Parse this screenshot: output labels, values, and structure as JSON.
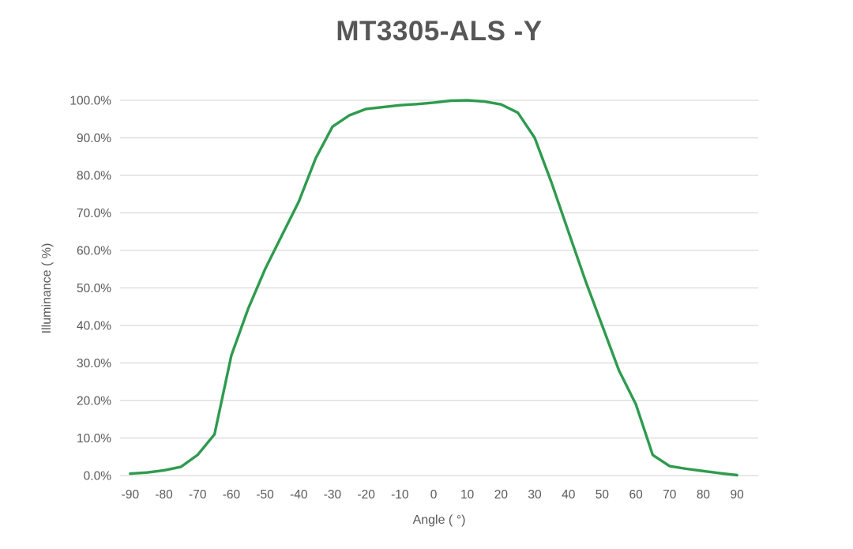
{
  "chart_data": {
    "type": "line",
    "title": "MT3305-ALS -Y",
    "xlabel": "Angle ( °)",
    "ylabel": "Illuminance ( %)",
    "xlim": [
      -94,
      97
    ],
    "ylim": [
      0,
      100
    ],
    "grid": "horizontal-gridlines-only",
    "legend": "none",
    "line_color": "#2e9b4e",
    "x_ticks": [
      -90,
      -80,
      -70,
      -60,
      -50,
      -40,
      -30,
      -20,
      -10,
      0,
      10,
      20,
      30,
      40,
      50,
      60,
      70,
      80,
      90
    ],
    "x_tick_labels": [
      "-90",
      "-80",
      "-70",
      "-60",
      "-50",
      "-40",
      "-30",
      "-20",
      "-10",
      "0",
      "10",
      "20",
      "30",
      "40",
      "50",
      "60",
      "70",
      "80",
      "90"
    ],
    "y_ticks": [
      0,
      10,
      20,
      30,
      40,
      50,
      60,
      70,
      80,
      90,
      100
    ],
    "y_tick_labels": [
      "0.0%",
      "10.0%",
      "20.0%",
      "30.0%",
      "40.0%",
      "50.0%",
      "60.0%",
      "70.0%",
      "80.0%",
      "90.0%",
      "100.0%"
    ],
    "series": [
      {
        "name": "Illuminance (%)",
        "x": [
          -90,
          -85,
          -80,
          -75,
          -70,
          -65,
          -60,
          -55,
          -50,
          -45,
          -40,
          -35,
          -30,
          -25,
          -20,
          -15,
          -10,
          -5,
          0,
          5,
          10,
          15,
          20,
          25,
          30,
          35,
          40,
          45,
          50,
          55,
          60,
          65,
          70,
          75,
          80,
          85,
          90
        ],
        "y": [
          0.5,
          0.8,
          1.4,
          2.3,
          5.5,
          11,
          32,
          44.5,
          55,
          64,
          73,
          84.5,
          93,
          96,
          97.7,
          98.2,
          98.7,
          99,
          99.4,
          99.9,
          100,
          99.7,
          98.9,
          96.7,
          90,
          78,
          65,
          52,
          40,
          28,
          19,
          5.5,
          2.5,
          1.8,
          1.2,
          0.6,
          0.1
        ]
      }
    ]
  },
  "colors": {
    "title_text": "#575757",
    "axis_text": "#595959",
    "gridline": "#d9d9d9",
    "background": "#ffffff"
  }
}
